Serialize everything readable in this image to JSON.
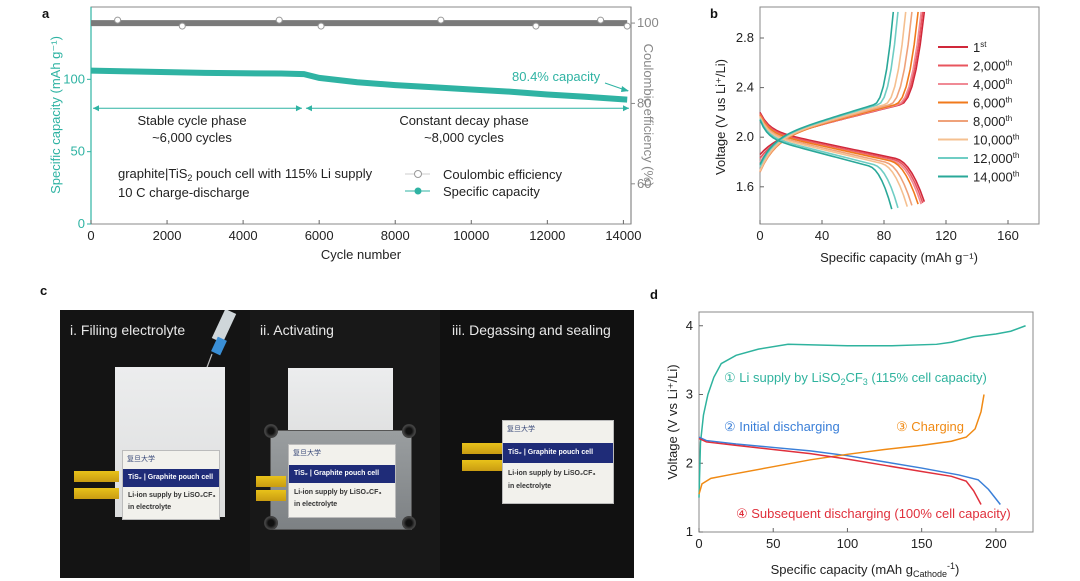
{
  "figure": {
    "panels": [
      "a",
      "b",
      "c",
      "d"
    ]
  },
  "chart_data": [
    {
      "id": "a",
      "type": "scatter",
      "xlabel": "Cycle number",
      "ylabel": "Specific capacity (mAh g⁻¹)",
      "y2label": "Coulombic efficiency (%)",
      "xlim": [
        0,
        14200
      ],
      "ylim": [
        0,
        150
      ],
      "y2lim": [
        50,
        104
      ],
      "xticks": [
        0,
        2000,
        4000,
        6000,
        8000,
        10000,
        12000,
        14000
      ],
      "yticks": [
        0,
        50,
        100
      ],
      "y2ticks": [
        60,
        80,
        100
      ],
      "series": [
        {
          "name": "Coulombic efficiency",
          "axis": "right",
          "color": "#7a7a7a",
          "x": [
            0,
            2000,
            4000,
            6000,
            8000,
            10000,
            12000,
            14100
          ],
          "y": [
            100,
            100,
            100,
            100,
            100,
            100,
            100,
            100
          ]
        },
        {
          "name": "Specific capacity",
          "axis": "left",
          "color": "#2fb3a3",
          "x": [
            0,
            1000,
            2000,
            3000,
            4000,
            5000,
            5600,
            6000,
            7000,
            8000,
            9000,
            10000,
            11000,
            12000,
            13000,
            14100
          ],
          "y": [
            106,
            105.5,
            105,
            104.5,
            104.2,
            104,
            103.6,
            101,
            98,
            96,
            94.5,
            93,
            91.5,
            89.5,
            88,
            86
          ]
        }
      ],
      "annotations": {
        "capacity_retention": "80.4% capacity",
        "stable_phase_title": "Stable cycle phase",
        "stable_phase_cycles": "~6,000 cycles",
        "decay_phase_title": "Constant decay phase",
        "decay_phase_cycles": "~8,000 cycles",
        "cell_desc_pre": "graphite|TiS",
        "cell_desc_sub": "2",
        "cell_desc_post": " pouch cell with 115% Li supply",
        "rate": "10 C charge-discharge",
        "phase_boundary_cycle": 5600,
        "phase_arrow_capacity": 80
      },
      "legend": {
        "position": "lower-right",
        "entries": [
          "Coulombic efficiency",
          "Specific capacity"
        ]
      }
    },
    {
      "id": "b",
      "type": "line",
      "xlabel": "Specific capacity (mAh g⁻¹)",
      "ylabel": "Voltage (V us Li⁺/Li)",
      "xlim": [
        0,
        180
      ],
      "ylim": [
        1.3,
        3.05
      ],
      "xticks": [
        0,
        40,
        80,
        120,
        160
      ],
      "yticks": [
        1.6,
        2.0,
        2.4,
        2.8
      ],
      "legend": {
        "position": "right"
      },
      "series": [
        {
          "name": "1",
          "sup": "st",
          "color": "#d0283a",
          "discharge_end": 106,
          "charge_end": 106,
          "discharge_start_v": 2.2,
          "charge_start_v": 1.86
        },
        {
          "name": "2,000",
          "sup": "th",
          "color": "#e8555e",
          "discharge_end": 105,
          "charge_end": 105,
          "discharge_start_v": 2.19,
          "charge_start_v": 1.83
        },
        {
          "name": "4,000",
          "sup": "th",
          "color": "#f08a95",
          "discharge_end": 104,
          "charge_end": 104,
          "discharge_start_v": 2.18,
          "charge_start_v": 1.8
        },
        {
          "name": "6,000",
          "sup": "th",
          "color": "#f07a1c",
          "discharge_end": 102,
          "charge_end": 102,
          "discharge_start_v": 2.18,
          "charge_start_v": 1.72
        },
        {
          "name": "8,000",
          "sup": "th",
          "color": "#efa27a",
          "discharge_end": 98,
          "charge_end": 98,
          "discharge_start_v": 2.17,
          "charge_start_v": 1.72
        },
        {
          "name": "10,000",
          "sup": "th",
          "color": "#f5c090",
          "discharge_end": 95,
          "charge_end": 94,
          "discharge_start_v": 2.16,
          "charge_start_v": 1.73
        },
        {
          "name": "12,000",
          "sup": "th",
          "color": "#6fcdc4",
          "discharge_end": 89,
          "charge_end": 89,
          "discharge_start_v": 2.15,
          "charge_start_v": 1.76
        },
        {
          "name": "14,000",
          "sup": "th",
          "color": "#2aa899",
          "discharge_end": 85,
          "charge_end": 86,
          "discharge_start_v": 2.14,
          "charge_start_v": 1.78
        }
      ]
    },
    {
      "id": "d",
      "type": "line",
      "xlabel": "Specific capacity (mAh g",
      "xlabel_sub": "Cathode",
      "xlabel_sup": "-1",
      "ylabel": "Voltage (V vs Li⁺/Li)",
      "xlim": [
        0,
        225
      ],
      "ylim": [
        1,
        4.2
      ],
      "xticks": [
        0,
        50,
        100,
        150,
        200
      ],
      "yticks": [
        1,
        2,
        3,
        4
      ],
      "series": [
        {
          "name": "① Li supply by LiSO₂CF₃ (115% cell capacity)",
          "color": "#2fb39e",
          "x": [
            0,
            1,
            3,
            6,
            10,
            15,
            25,
            40,
            60,
            80,
            100,
            130,
            160,
            170,
            185,
            200,
            210,
            220
          ],
          "y": [
            1.5,
            2.3,
            2.7,
            3.0,
            3.25,
            3.45,
            3.57,
            3.66,
            3.73,
            3.72,
            3.71,
            3.71,
            3.73,
            3.76,
            3.84,
            3.88,
            3.92,
            4.0
          ]
        },
        {
          "name": "② Initial discharging",
          "color": "#3a7fd8",
          "x": [
            0,
            5,
            25,
            50,
            75,
            100,
            125,
            150,
            175,
            188,
            195,
            203
          ],
          "y": [
            2.38,
            2.33,
            2.28,
            2.23,
            2.18,
            2.11,
            2.02,
            1.93,
            1.83,
            1.76,
            1.62,
            1.4
          ]
        },
        {
          "name": "③ Charging",
          "color": "#f08a14",
          "x": [
            0,
            2,
            8,
            20,
            50,
            75,
            100,
            125,
            150,
            170,
            180,
            186,
            190,
            192
          ],
          "y": [
            1.55,
            1.7,
            1.78,
            1.83,
            1.95,
            2.05,
            2.13,
            2.2,
            2.26,
            2.32,
            2.38,
            2.5,
            2.75,
            3.0
          ]
        },
        {
          "name": "④ Subsequent discharging (100% cell capacity)",
          "color": "#e0303c",
          "x": [
            0,
            5,
            25,
            50,
            75,
            100,
            125,
            150,
            170,
            180,
            185,
            190
          ],
          "y": [
            2.36,
            2.31,
            2.26,
            2.2,
            2.14,
            2.06,
            1.97,
            1.88,
            1.81,
            1.74,
            1.6,
            1.4
          ]
        }
      ],
      "labels": {
        "s1_pre": "① Li supply by LiSO",
        "s1_sub1": "2",
        "s1_mid": "CF",
        "s1_sub2": "3",
        "s1_post": " (115% cell capacity)",
        "s2": "② Initial discharging",
        "s3": "③ Charging",
        "s4": "④ Subsequent discharging (100% cell capacity)"
      }
    }
  ],
  "photo": {
    "steps": [
      {
        "title": "i. Filiing electrolyte"
      },
      {
        "title": "ii. Activating"
      },
      {
        "title": "iii. Degassing and sealing"
      }
    ],
    "label": {
      "logo": "复旦大学",
      "bar": "TiS₂ | Graphite pouch cell",
      "line1": "Li-ion supply by LiSO₂CF₃",
      "line2": "in electrolyte"
    }
  }
}
